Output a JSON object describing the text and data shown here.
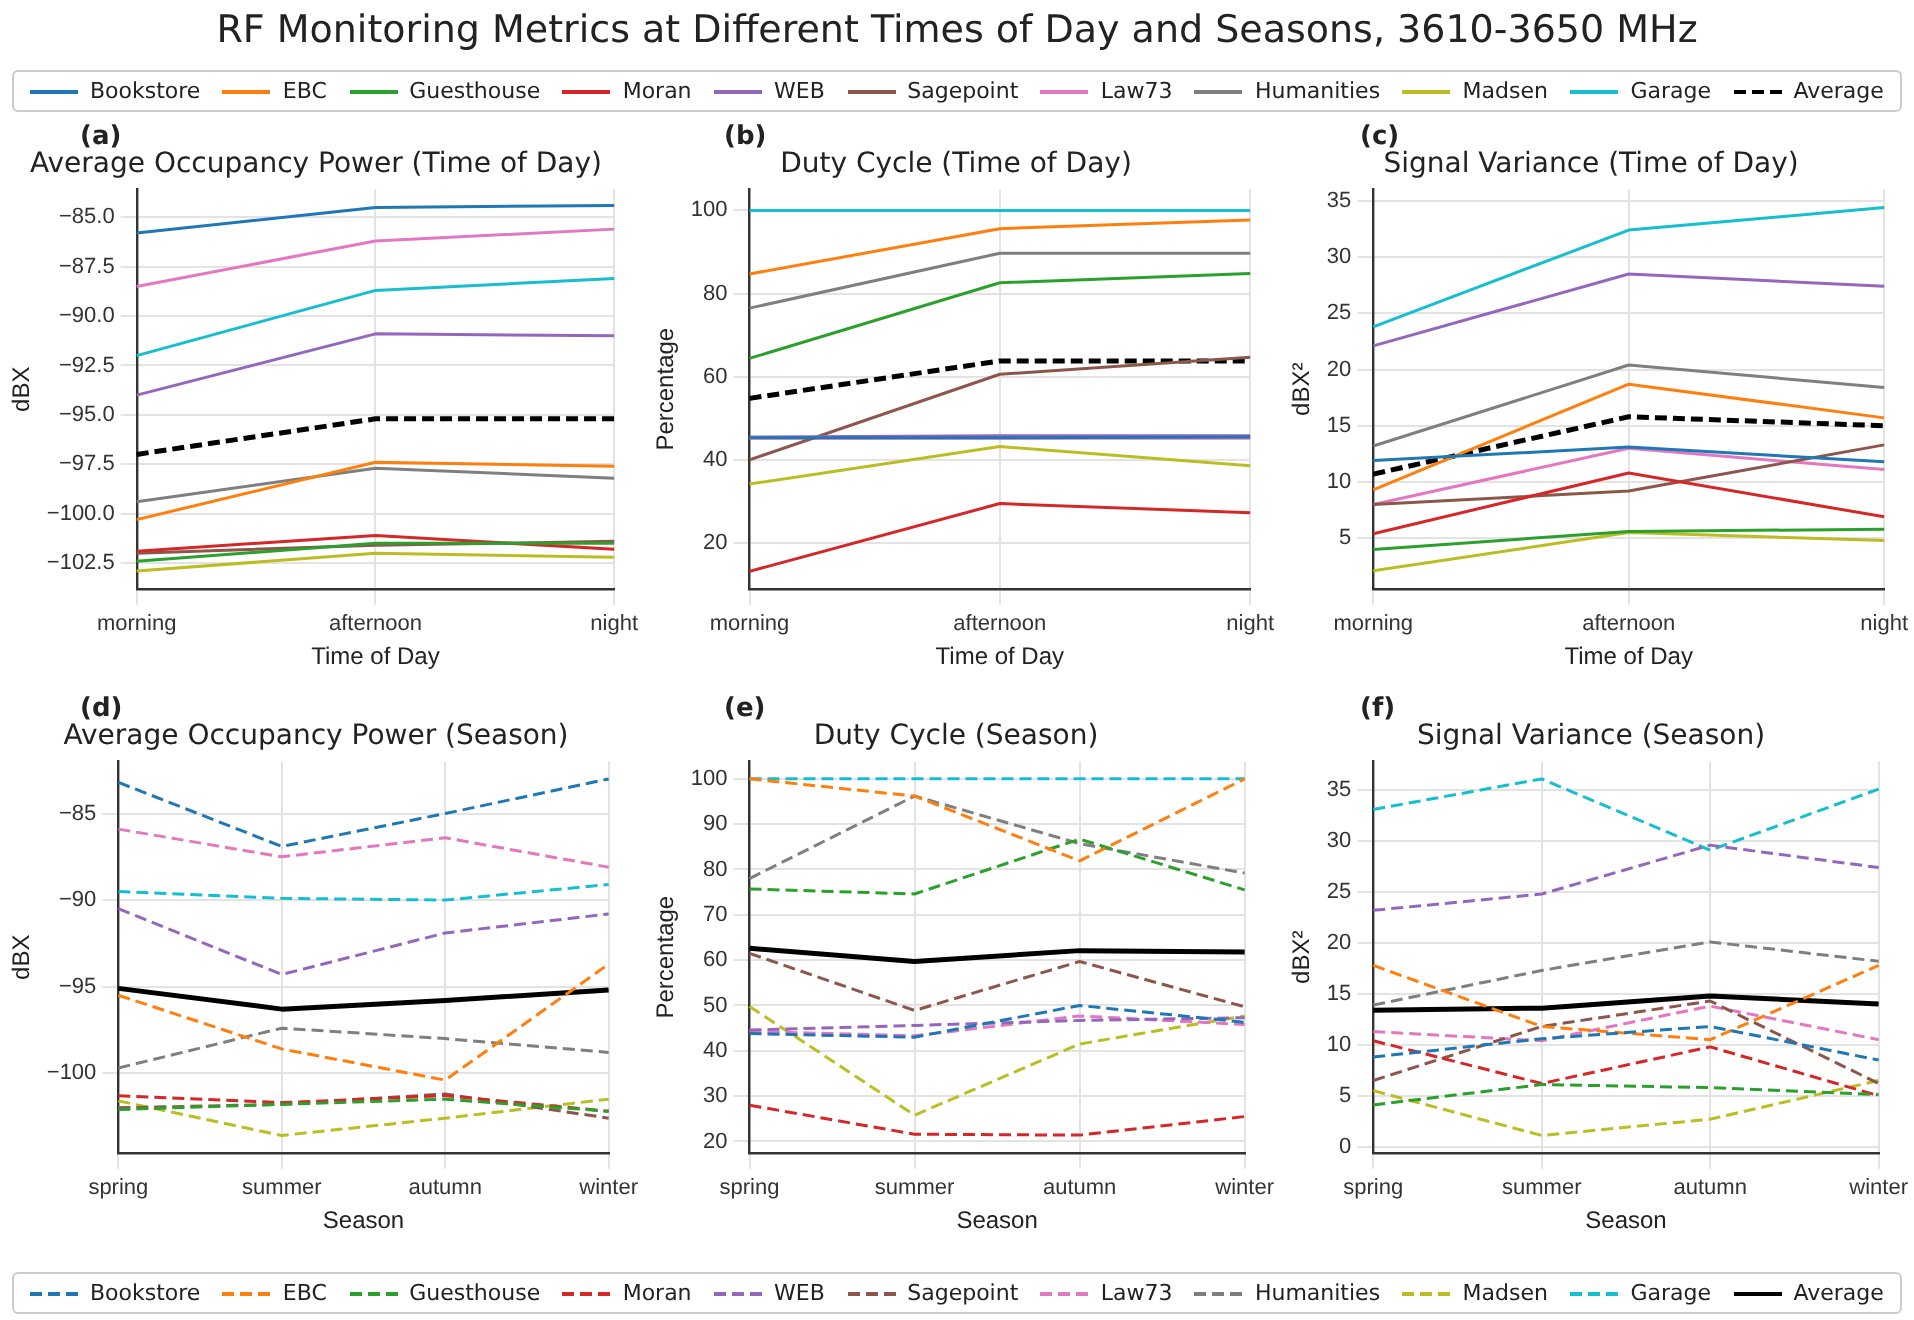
{
  "chart_data": [
    {
      "type": "other",
      "title": "RF Monitoring Metrics at Different Times of Day and Seasons, 3610-3650 MHz"
    },
    {
      "type": "line",
      "title": "Average Occupancy Power (Time of Day)",
      "xlabel": "Time of Day",
      "ylabel": "dBX",
      "annotations": [
        "(a)"
      ],
      "grid": true,
      "legend": "top",
      "categories": [
        "morning",
        "afternoon",
        "night"
      ],
      "ylim": [
        -103.8,
        -83.6
      ],
      "yticks": [
        {
          "value": -102.5,
          "label": "−102.5"
        },
        {
          "value": -100,
          "label": "−100.0"
        },
        {
          "value": -97.5,
          "label": "−97.5"
        },
        {
          "value": -95,
          "label": "−95.0"
        },
        {
          "value": -92.5,
          "label": "−92.5"
        },
        {
          "value": -90,
          "label": "−90.0"
        },
        {
          "value": -87.5,
          "label": "−87.5"
        },
        {
          "value": -85,
          "label": "−85.0"
        }
      ],
      "series": [
        {
          "name": "Bookstore",
          "color": "#1f77b4",
          "line_style": "solid",
          "values": [
            -85.8,
            -84.5,
            -84.4
          ]
        },
        {
          "name": "EBC",
          "color": "#ff7f0e",
          "line_style": "solid",
          "values": [
            -100.3,
            -97.4,
            -97.6
          ]
        },
        {
          "name": "Guesthouse",
          "color": "#2ca02c",
          "line_style": "solid",
          "values": [
            -102.4,
            -101.5,
            -101.5
          ]
        },
        {
          "name": "Moran",
          "color": "#d62728",
          "line_style": "solid",
          "values": [
            -101.9,
            -101.1,
            -101.8
          ]
        },
        {
          "name": "WEB",
          "color": "#9467bd",
          "line_style": "solid",
          "values": [
            -94.0,
            -90.9,
            -91.0
          ]
        },
        {
          "name": "Sagepoint",
          "color": "#8c564b",
          "line_style": "solid",
          "values": [
            -102.0,
            -101.6,
            -101.4
          ]
        },
        {
          "name": "Law73",
          "color": "#e377c2",
          "line_style": "solid",
          "values": [
            -88.5,
            -86.2,
            -85.6
          ]
        },
        {
          "name": "Humanities",
          "color": "#7f7f7f",
          "line_style": "solid",
          "values": [
            -99.4,
            -97.7,
            -98.2
          ]
        },
        {
          "name": "Madsen",
          "color": "#bcbd22",
          "line_style": "solid",
          "values": [
            -102.9,
            -102.0,
            -102.2
          ]
        },
        {
          "name": "Garage",
          "color": "#17becf",
          "line_style": "solid",
          "values": [
            -92.0,
            -88.7,
            -88.1
          ]
        },
        {
          "name": "Average",
          "color": "#000000",
          "line_style": "dashed",
          "values": [
            -97.0,
            -95.2,
            -95.2
          ]
        }
      ]
    },
    {
      "type": "line",
      "title": "Duty Cycle (Time of Day)",
      "xlabel": "Time of Day",
      "ylabel": "Percentage",
      "annotations": [
        "(b)"
      ],
      "grid": true,
      "categories": [
        "morning",
        "afternoon",
        "night"
      ],
      "ylim": [
        9,
        105
      ],
      "yticks": [
        20,
        40,
        60,
        80,
        100
      ],
      "series": [
        {
          "color": "#1f77b4",
          "line_style": "solid",
          "values": [
            45.3,
            45.3,
            45.5
          ]
        },
        {
          "color": "#ff7f0e",
          "line_style": "solid",
          "values": [
            84.7,
            95.6,
            97.7
          ]
        },
        {
          "color": "#2ca02c",
          "line_style": "solid",
          "values": [
            64.4,
            82.6,
            84.8
          ]
        },
        {
          "color": "#d62728",
          "line_style": "solid",
          "values": [
            13.2,
            29.5,
            27.3
          ]
        },
        {
          "color": "#9467bd",
          "line_style": "solid",
          "values": [
            45.5,
            45.8,
            45.8
          ]
        },
        {
          "color": "#8c564b",
          "line_style": "solid",
          "values": [
            40.0,
            60.6,
            64.7
          ]
        },
        {
          "color": "#e377c2",
          "line_style": "solid",
          "values": [
            45.2,
            45.2,
            45.2
          ]
        },
        {
          "color": "#7f7f7f",
          "line_style": "solid",
          "values": [
            76.5,
            89.7,
            89.7
          ]
        },
        {
          "color": "#bcbd22",
          "line_style": "solid",
          "values": [
            34.2,
            43.2,
            38.6
          ]
        },
        {
          "color": "#17becf",
          "line_style": "solid",
          "values": [
            100,
            100,
            100
          ]
        },
        {
          "color": "#000000",
          "line_style": "dashed",
          "values": [
            54.8,
            63.8,
            63.8
          ]
        }
      ]
    },
    {
      "type": "line",
      "title": "Signal Variance (Time of Day)",
      "xlabel": "Time of Day",
      "ylabel": "dBX²",
      "annotations": [
        "(c)"
      ],
      "grid": true,
      "categories": [
        "morning",
        "afternoon",
        "night"
      ],
      "ylim": [
        0.5,
        36
      ],
      "yticks": [
        5,
        10,
        15,
        20,
        25,
        30,
        35
      ],
      "series": [
        {
          "color": "#1f77b4",
          "line_style": "solid",
          "values": [
            11.9,
            13.1,
            11.8
          ]
        },
        {
          "color": "#ff7f0e",
          "line_style": "solid",
          "values": [
            9.3,
            18.7,
            15.7
          ]
        },
        {
          "color": "#2ca02c",
          "line_style": "solid",
          "values": [
            4.0,
            5.6,
            5.8
          ]
        },
        {
          "color": "#d62728",
          "line_style": "solid",
          "values": [
            5.4,
            10.8,
            6.9
          ]
        },
        {
          "color": "#9467bd",
          "line_style": "solid",
          "values": [
            22.1,
            28.5,
            27.4
          ]
        },
        {
          "color": "#8c564b",
          "line_style": "solid",
          "values": [
            8.0,
            9.2,
            13.3
          ]
        },
        {
          "color": "#e377c2",
          "line_style": "solid",
          "values": [
            8.0,
            13.0,
            11.1
          ]
        },
        {
          "color": "#7f7f7f",
          "line_style": "solid",
          "values": [
            13.2,
            20.4,
            18.4
          ]
        },
        {
          "color": "#bcbd22",
          "line_style": "solid",
          "values": [
            2.1,
            5.5,
            4.8
          ]
        },
        {
          "color": "#17becf",
          "line_style": "solid",
          "values": [
            23.8,
            32.4,
            34.4
          ]
        },
        {
          "color": "#000000",
          "line_style": "dashed",
          "values": [
            10.7,
            15.8,
            15.0
          ]
        }
      ]
    },
    {
      "type": "line",
      "title": "Average Occupancy Power (Season)",
      "xlabel": "Season",
      "ylabel": "dBX",
      "annotations": [
        "(d)"
      ],
      "grid": true,
      "legend": "bottom",
      "categories": [
        "spring",
        "summer",
        "autumn",
        "winter"
      ],
      "ylim": [
        -104.6,
        -82
      ],
      "yticks": [
        {
          "value": -100,
          "label": "−100"
        },
        {
          "value": -95,
          "label": "−95"
        },
        {
          "value": -90,
          "label": "−90"
        },
        {
          "value": -85,
          "label": "−85"
        }
      ],
      "series": [
        {
          "name": "Bookstore",
          "color": "#1f77b4",
          "line_style": "dashed",
          "values": [
            -83.2,
            -86.9,
            -85.0,
            -83.0
          ]
        },
        {
          "name": "EBC",
          "color": "#ff7f0e",
          "line_style": "dashed",
          "values": [
            -95.5,
            -98.6,
            -100.4,
            -93.7
          ]
        },
        {
          "name": "Guesthouse",
          "color": "#2ca02c",
          "line_style": "dashed",
          "values": [
            -102.1,
            -101.8,
            -101.5,
            -102.2
          ]
        },
        {
          "name": "Moran",
          "color": "#d62728",
          "line_style": "dashed",
          "values": [
            -101.3,
            -101.7,
            -101.3,
            -102.2
          ]
        },
        {
          "name": "WEB",
          "color": "#9467bd",
          "line_style": "dashed",
          "values": [
            -90.5,
            -94.3,
            -91.9,
            -90.8
          ]
        },
        {
          "name": "Sagepoint",
          "color": "#8c564b",
          "line_style": "dashed",
          "values": [
            -102.0,
            -101.8,
            -101.2,
            -102.6
          ]
        },
        {
          "name": "Law73",
          "color": "#e377c2",
          "line_style": "dashed",
          "values": [
            -85.9,
            -87.5,
            -86.4,
            -88.1
          ]
        },
        {
          "name": "Humanities",
          "color": "#7f7f7f",
          "line_style": "dashed",
          "values": [
            -99.7,
            -97.4,
            -98.0,
            -98.8
          ]
        },
        {
          "name": "Madsen",
          "color": "#bcbd22",
          "line_style": "dashed",
          "values": [
            -101.6,
            -103.6,
            -102.6,
            -101.5
          ]
        },
        {
          "name": "Garage",
          "color": "#17becf",
          "line_style": "dashed",
          "values": [
            -89.5,
            -89.9,
            -90.0,
            -89.1
          ]
        },
        {
          "name": "Average",
          "color": "#000000",
          "line_style": "solid",
          "values": [
            -95.1,
            -96.3,
            -95.8,
            -95.2
          ]
        }
      ]
    },
    {
      "type": "line",
      "title": "Duty Cycle (Season)",
      "xlabel": "Season",
      "ylabel": "Percentage",
      "annotations": [
        "(e)"
      ],
      "grid": true,
      "categories": [
        "spring",
        "summer",
        "autumn",
        "winter"
      ],
      "ylim": [
        17.5,
        103.8
      ],
      "yticks": [
        20,
        30,
        40,
        50,
        60,
        70,
        80,
        90,
        100
      ],
      "series": [
        {
          "color": "#1f77b4",
          "line_style": "dashed",
          "values": [
            43.8,
            43.0,
            50.0,
            46.3
          ]
        },
        {
          "color": "#ff7f0e",
          "line_style": "dashed",
          "values": [
            100,
            96.2,
            81.9,
            100
          ]
        },
        {
          "color": "#2ca02c",
          "line_style": "dashed",
          "values": [
            75.7,
            74.6,
            86.7,
            75.5
          ]
        },
        {
          "color": "#d62728",
          "line_style": "dashed",
          "values": [
            28.0,
            21.6,
            21.4,
            25.5
          ]
        },
        {
          "color": "#9467bd",
          "line_style": "dashed",
          "values": [
            44.6,
            45.6,
            46.7,
            47.3
          ]
        },
        {
          "color": "#8c564b",
          "line_style": "dashed",
          "values": [
            61.5,
            48.9,
            59.7,
            49.7
          ]
        },
        {
          "color": "#e377c2",
          "line_style": "dashed",
          "values": [
            44.3,
            43.3,
            47.7,
            45.8
          ]
        },
        {
          "color": "#7f7f7f",
          "line_style": "dashed",
          "values": [
            78.0,
            96.2,
            85.7,
            79.2
          ]
        },
        {
          "color": "#bcbd22",
          "line_style": "dashed",
          "values": [
            49.8,
            25.8,
            41.5,
            47.7
          ]
        },
        {
          "color": "#17becf",
          "line_style": "dashed",
          "values": [
            100,
            100,
            100,
            100
          ]
        },
        {
          "color": "#000000",
          "line_style": "solid",
          "values": [
            62.6,
            59.7,
            62.1,
            61.8
          ]
        }
      ]
    },
    {
      "type": "line",
      "title": "Signal Variance (Season)",
      "xlabel": "Season",
      "ylabel": "dBX²",
      "annotations": [
        "(f)"
      ],
      "grid": true,
      "categories": [
        "spring",
        "summer",
        "autumn",
        "winter"
      ],
      "ylim": [
        -0.6,
        37.8
      ],
      "yticks": [
        0,
        5,
        10,
        15,
        20,
        25,
        30,
        35
      ],
      "series": [
        {
          "color": "#1f77b4",
          "line_style": "dashed",
          "values": [
            8.8,
            10.6,
            11.8,
            8.5
          ]
        },
        {
          "color": "#ff7f0e",
          "line_style": "dashed",
          "values": [
            17.8,
            11.8,
            10.5,
            17.8
          ]
        },
        {
          "color": "#2ca02c",
          "line_style": "dashed",
          "values": [
            4.1,
            6.1,
            5.8,
            5.1
          ]
        },
        {
          "color": "#d62728",
          "line_style": "dashed",
          "values": [
            10.4,
            6.2,
            9.8,
            5.0
          ]
        },
        {
          "color": "#9467bd",
          "line_style": "dashed",
          "values": [
            23.2,
            24.8,
            29.6,
            27.4
          ]
        },
        {
          "color": "#8c564b",
          "line_style": "dashed",
          "values": [
            6.5,
            11.8,
            14.3,
            6.2
          ]
        },
        {
          "color": "#e377c2",
          "line_style": "dashed",
          "values": [
            11.3,
            10.4,
            13.8,
            10.5
          ]
        },
        {
          "color": "#7f7f7f",
          "line_style": "dashed",
          "values": [
            13.9,
            17.3,
            20.1,
            18.2
          ]
        },
        {
          "color": "#bcbd22",
          "line_style": "dashed",
          "values": [
            5.5,
            1.1,
            2.7,
            6.5
          ]
        },
        {
          "color": "#17becf",
          "line_style": "dashed",
          "values": [
            33.1,
            36.1,
            29.1,
            35.1
          ]
        },
        {
          "color": "#000000",
          "line_style": "solid",
          "values": [
            13.4,
            13.6,
            14.8,
            14.0
          ]
        }
      ]
    }
  ]
}
